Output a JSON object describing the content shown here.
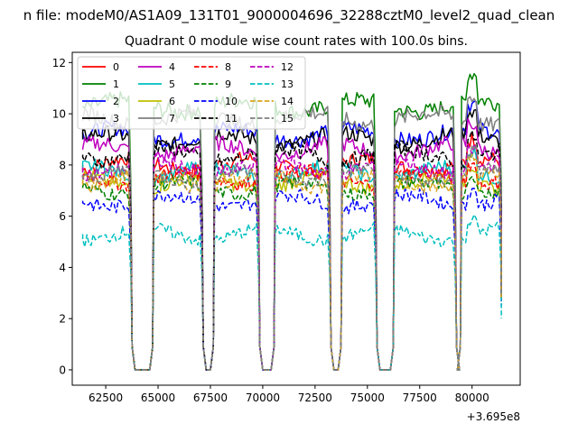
{
  "window": {
    "suptitle": "n file: modeM0/AS1A09_131T01_9000004696_32288cztM0_level2_quad_clean"
  },
  "chart_data": {
    "type": "line",
    "title": "Quadrant 0 module wise count rates with 100.0s bins.",
    "xlabel": "",
    "ylabel": "",
    "xlim": [
      60900,
      82300
    ],
    "ylim": [
      -0.6,
      12.4
    ],
    "x_offset_label": "+3.695e8",
    "x_ticks": [
      62500,
      65000,
      67500,
      70000,
      72500,
      75000,
      77500,
      80000
    ],
    "x_tick_labels": [
      "62500",
      "65000",
      "67500",
      "70000",
      "72500",
      "75000",
      "77500",
      "80000"
    ],
    "y_ticks": [
      0,
      2,
      4,
      6,
      8,
      10,
      12
    ],
    "y_tick_labels": [
      "0",
      "2",
      "4",
      "6",
      "8",
      "10",
      "12"
    ],
    "grid": false,
    "legend_placement": "upper-left",
    "segments": [
      [
        61400,
        63700
      ],
      [
        64800,
        67100
      ],
      [
        67700,
        69800
      ],
      [
        70600,
        73200
      ],
      [
        73800,
        75400
      ],
      [
        76300,
        79200
      ],
      [
        79500,
        81400
      ]
    ],
    "series": [
      {
        "name": "0",
        "color": "#ff0000",
        "dash": "solid",
        "level": 8.0
      },
      {
        "name": "1",
        "color": "#008000",
        "dash": "solid",
        "level": 10.3
      },
      {
        "name": "2",
        "color": "#0000ff",
        "dash": "solid",
        "level": 9.2
      },
      {
        "name": "3",
        "color": "#000000",
        "dash": "solid",
        "level": 9.0
      },
      {
        "name": "4",
        "color": "#bf00bf",
        "dash": "solid",
        "level": 8.6
      },
      {
        "name": "5",
        "color": "#00bfbf",
        "dash": "solid",
        "level": 7.7
      },
      {
        "name": "6",
        "color": "#bfbf00",
        "dash": "solid",
        "level": 7.3
      },
      {
        "name": "7",
        "color": "#7f7f7f",
        "dash": "solid",
        "level": 9.8
      },
      {
        "name": "8",
        "color": "#ff0000",
        "dash": "dashed",
        "level": 7.5
      },
      {
        "name": "9",
        "color": "#008000",
        "dash": "dashed",
        "level": 7.1
      },
      {
        "name": "10",
        "color": "#0000ff",
        "dash": "dashed",
        "level": 6.6
      },
      {
        "name": "11",
        "color": "#000000",
        "dash": "dashed",
        "level": 8.4
      },
      {
        "name": "12",
        "color": "#bf00bf",
        "dash": "dashed",
        "level": 7.9
      },
      {
        "name": "13",
        "color": "#00bfbf",
        "dash": "dashed",
        "level": 5.3
      },
      {
        "name": "14",
        "color": "#daa520",
        "dash": "dashed",
        "level": 7.4
      },
      {
        "name": "15",
        "color": "#7f7f7f",
        "dash": "dashed",
        "level": 7.6
      }
    ]
  }
}
